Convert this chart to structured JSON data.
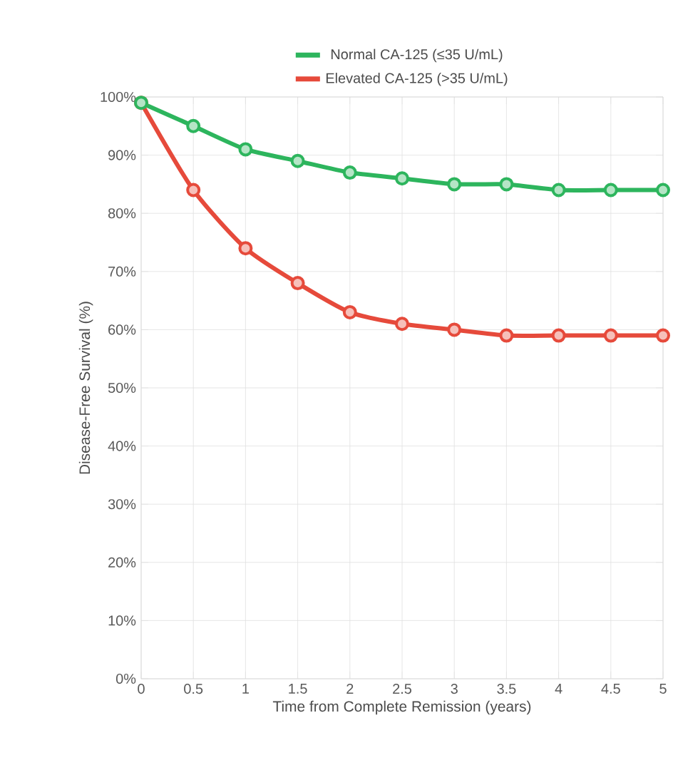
{
  "chart_data": {
    "type": "line",
    "xlabel": "Time from Complete Remission (years)",
    "ylabel": "Disease-Free Survival (%)",
    "x": [
      0,
      0.5,
      1,
      1.5,
      2,
      2.5,
      3,
      3.5,
      4,
      4.5,
      5
    ],
    "series": [
      {
        "name": "Normal CA-125 (≤35 U/mL)",
        "color": "#2db55d",
        "values": [
          99,
          95,
          91,
          89,
          87,
          86,
          85,
          85,
          84,
          84,
          84
        ]
      },
      {
        "name": "Elevated CA-125 (>35 U/mL)",
        "color": "#e64a3b",
        "values": [
          99,
          84,
          74,
          68,
          63,
          61,
          60,
          59,
          59,
          59,
          59
        ]
      }
    ],
    "xlim": [
      0,
      5
    ],
    "xticks": [
      0,
      0.5,
      1,
      1.5,
      2,
      2.5,
      3,
      3.5,
      4,
      4.5,
      5
    ],
    "ylim": [
      0,
      100
    ],
    "yticks": [
      {
        "value": 0,
        "label": "0%"
      },
      {
        "value": 10,
        "label": "10%"
      },
      {
        "value": 20,
        "label": "20%"
      },
      {
        "value": 30,
        "label": "30%"
      },
      {
        "value": 40,
        "label": "40%"
      },
      {
        "value": 50,
        "label": "50%"
      },
      {
        "value": 60,
        "label": "60%"
      },
      {
        "value": 70,
        "label": "70%"
      },
      {
        "value": 80,
        "label": "80%"
      },
      {
        "value": 90,
        "label": "90%"
      },
      {
        "value": 100,
        "label": "100%"
      }
    ],
    "grid": true,
    "legend": "top",
    "marker": "circle",
    "line_style": "solid"
  }
}
